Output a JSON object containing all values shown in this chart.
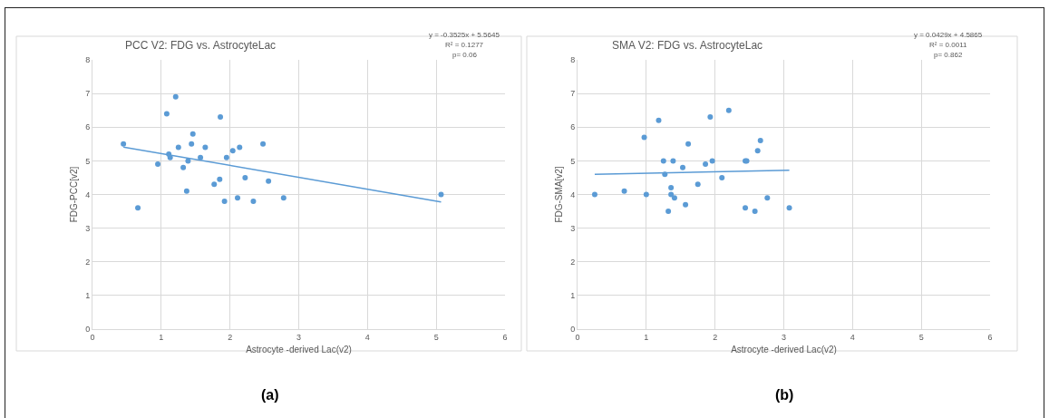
{
  "chart_data": [
    {
      "type": "scatter",
      "title": "PCC V2: FDG vs. AstrocyteLac",
      "xlabel": "Astrocyte -derived Lac(v2)",
      "ylabel": "FDG-PCC[v2]",
      "xlim": [
        0,
        6
      ],
      "xticks": [
        0,
        1,
        2,
        3,
        4,
        5,
        6
      ],
      "ylim": [
        0,
        8
      ],
      "yticks": [
        0,
        1,
        2,
        3,
        4,
        5,
        6,
        7,
        8
      ],
      "grid": true,
      "marker": "circle",
      "series": [
        {
          "color": "#5b9bd5",
          "x": [
            0.45,
            0.66,
            0.95,
            1.08,
            1.21,
            1.11,
            1.13,
            1.25,
            1.32,
            1.37,
            1.39,
            1.44,
            1.46,
            1.57,
            1.64,
            1.77,
            1.85,
            1.86,
            1.92,
            1.95,
            2.04,
            2.11,
            2.14,
            2.22,
            2.34,
            2.48,
            2.56,
            2.78,
            5.07
          ],
          "values": [
            5.5,
            3.6,
            4.9,
            6.4,
            6.9,
            5.2,
            5.1,
            5.4,
            4.8,
            4.1,
            5.0,
            5.5,
            5.8,
            5.1,
            5.4,
            4.3,
            4.45,
            6.3,
            3.8,
            5.1,
            5.3,
            3.9,
            5.4,
            4.5,
            3.8,
            5.5,
            4.4,
            3.9,
            4.0
          ]
        },
        {
          "type": "line",
          "marker": "none",
          "color": "#5b9bd5",
          "line_style": "solid",
          "x": [
            0.45,
            5.07
          ],
          "values": [
            5.41,
            3.78
          ]
        }
      ],
      "annotations": [
        "y = -0.3525x + 5.5645",
        "R² = 0.1277",
        "p= 0.06",
        "(a)"
      ]
    },
    {
      "type": "scatter",
      "title": "SMA V2: FDG vs. AstrocyteLac",
      "xlabel": "Astrocyte -derived Lac(v2)",
      "ylabel": "FDG-SMA[v2]",
      "xlim": [
        0,
        6
      ],
      "xticks": [
        0,
        1,
        2,
        3,
        4,
        5,
        6
      ],
      "ylim": [
        0,
        8
      ],
      "yticks": [
        0,
        1,
        2,
        3,
        4,
        5,
        6,
        7,
        8
      ],
      "grid": true,
      "marker": "circle",
      "series": [
        {
          "color": "#5b9bd5",
          "x": [
            0.25,
            0.68,
            0.97,
            1.0,
            1.18,
            1.25,
            1.27,
            1.32,
            1.36,
            1.36,
            1.39,
            1.41,
            1.53,
            1.57,
            1.61,
            1.75,
            1.86,
            1.93,
            1.96,
            2.1,
            2.2,
            2.44,
            2.46,
            2.62,
            2.66,
            2.76,
            2.44,
            2.58,
            3.08
          ],
          "values": [
            4.0,
            4.1,
            5.7,
            4.0,
            6.2,
            5.0,
            4.6,
            3.5,
            4.2,
            4.0,
            5.0,
            3.9,
            4.8,
            3.7,
            5.5,
            4.3,
            4.9,
            6.3,
            5.0,
            4.5,
            6.5,
            5.0,
            5.0,
            5.3,
            5.6,
            3.9,
            3.6,
            3.5,
            3.6
          ]
        },
        {
          "type": "line",
          "marker": "none",
          "color": "#5b9bd5",
          "line_style": "solid",
          "x": [
            0.25,
            3.08
          ],
          "values": [
            4.6,
            4.72
          ]
        }
      ],
      "annotations": [
        "y = 0.0429x + 4.5865",
        "R² = 0.0011",
        "p= 0.862",
        "(b)"
      ]
    }
  ]
}
